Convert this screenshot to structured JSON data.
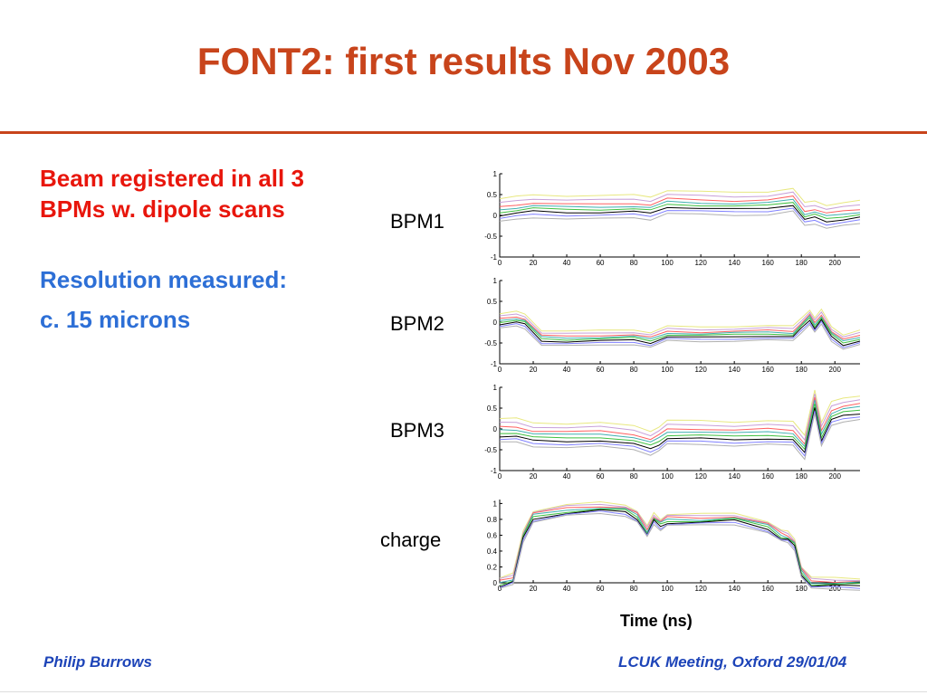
{
  "title": "FONT2: first results Nov 2003",
  "bullets": {
    "b1": "Beam registered in all 3 BPMs w. dipole scans",
    "b2": "Resolution measured:",
    "b3": "c. 15 microns"
  },
  "plots": {
    "bpm1": "BPM1",
    "bpm2": "BPM2",
    "bpm3": "BPM3",
    "charge": "charge"
  },
  "xaxis_label": "Time (ns)",
  "footer": {
    "left": "Philip Burrows",
    "right": "LCUK Meeting, Oxford 29/01/04"
  },
  "chart_data": [
    {
      "type": "line",
      "label": "BPM1",
      "xlim": [
        0,
        215
      ],
      "ylim": [
        -1,
        1
      ],
      "xticks": [
        0,
        20,
        40,
        60,
        80,
        100,
        120,
        140,
        160,
        180,
        200
      ],
      "yticks": [
        1,
        0.5,
        0,
        -0.5,
        -1
      ],
      "ytick_labels": [
        "1",
        "0.5",
        "0",
        "-0.5",
        "-1"
      ],
      "x": [
        0,
        10,
        20,
        40,
        60,
        80,
        90,
        100,
        120,
        140,
        160,
        175,
        182,
        188,
        195,
        205,
        215
      ],
      "base": [
        0.05,
        0.1,
        0.15,
        0.12,
        0.12,
        0.14,
        0.1,
        0.25,
        0.22,
        0.2,
        0.22,
        0.3,
        -0.05,
        0.0,
        -0.1,
        -0.05,
        0.0
      ],
      "offsets": [
        0.35,
        0.25,
        0.15,
        0.08,
        0.02,
        -0.05,
        -0.12,
        -0.2
      ]
    },
    {
      "type": "line",
      "label": "BPM2",
      "xlim": [
        0,
        215
      ],
      "ylim": [
        -1,
        1
      ],
      "xticks": [
        0,
        20,
        40,
        60,
        80,
        100,
        120,
        140,
        160,
        180,
        200
      ],
      "yticks": [
        1,
        0.5,
        0,
        -0.5,
        -1
      ],
      "ytick_labels": [
        "1",
        "0.5",
        "0",
        "-0.5",
        "-1"
      ],
      "x": [
        0,
        10,
        15,
        25,
        40,
        60,
        80,
        90,
        100,
        120,
        140,
        160,
        175,
        180,
        185,
        188,
        192,
        198,
        205,
        215
      ],
      "base": [
        0.0,
        0.05,
        0.0,
        -0.4,
        -0.42,
        -0.4,
        -0.38,
        -0.45,
        -0.3,
        -0.32,
        -0.3,
        -0.28,
        -0.3,
        -0.1,
        0.1,
        -0.1,
        0.1,
        -0.3,
        -0.5,
        -0.4
      ],
      "offsets": [
        0.2,
        0.14,
        0.08,
        0.04,
        0.0,
        -0.05,
        -0.1,
        -0.15
      ]
    },
    {
      "type": "line",
      "label": "BPM3",
      "xlim": [
        0,
        215
      ],
      "ylim": [
        -1,
        1
      ],
      "xticks": [
        0,
        20,
        40,
        60,
        80,
        100,
        120,
        140,
        160,
        180,
        200
      ],
      "yticks": [
        1,
        0.5,
        0,
        -0.5,
        -1
      ],
      "ytick_labels": [
        "1",
        "0.5",
        "0",
        "-0.5",
        "-1"
      ],
      "x": [
        0,
        10,
        20,
        40,
        60,
        80,
        90,
        95,
        100,
        120,
        140,
        160,
        175,
        182,
        188,
        192,
        198,
        205,
        215
      ],
      "base": [
        -0.1,
        -0.1,
        -0.2,
        -0.22,
        -0.2,
        -0.28,
        -0.4,
        -0.3,
        -0.15,
        -0.15,
        -0.18,
        -0.15,
        -0.18,
        -0.5,
        0.6,
        -0.2,
        0.3,
        0.4,
        0.45
      ],
      "offsets": [
        0.35,
        0.25,
        0.15,
        0.08,
        0.0,
        -0.08,
        -0.15,
        -0.22
      ]
    },
    {
      "type": "line",
      "label": "charge",
      "xlim": [
        0,
        215
      ],
      "ylim": [
        0,
        1.05
      ],
      "xticks": [
        0,
        20,
        40,
        60,
        80,
        100,
        120,
        140,
        160,
        180,
        200
      ],
      "yticks": [
        1,
        0.8,
        0.6,
        0.4,
        0.2,
        0
      ],
      "ytick_labels": [
        "1",
        "0.8",
        "0.6",
        "0.4",
        "0.2",
        "0"
      ],
      "x": [
        0,
        8,
        14,
        20,
        40,
        60,
        75,
        82,
        88,
        92,
        96,
        100,
        120,
        140,
        160,
        168,
        172,
        176,
        180,
        186,
        200,
        215
      ],
      "base": [
        0.0,
        0.05,
        0.6,
        0.85,
        0.92,
        0.95,
        0.93,
        0.85,
        0.65,
        0.82,
        0.75,
        0.8,
        0.8,
        0.82,
        0.72,
        0.6,
        0.58,
        0.5,
        0.15,
        0.0,
        0.0,
        0.0
      ],
      "offsets": [
        0.06,
        0.04,
        0.02,
        0.0,
        -0.02,
        -0.04,
        -0.06,
        -0.08
      ]
    }
  ],
  "series_colors": [
    "#e8e880",
    "#c8a0d8",
    "#ff6060",
    "#40b0b0",
    "#40c040",
    "#000000",
    "#8080ff",
    "#b0b0b0"
  ]
}
